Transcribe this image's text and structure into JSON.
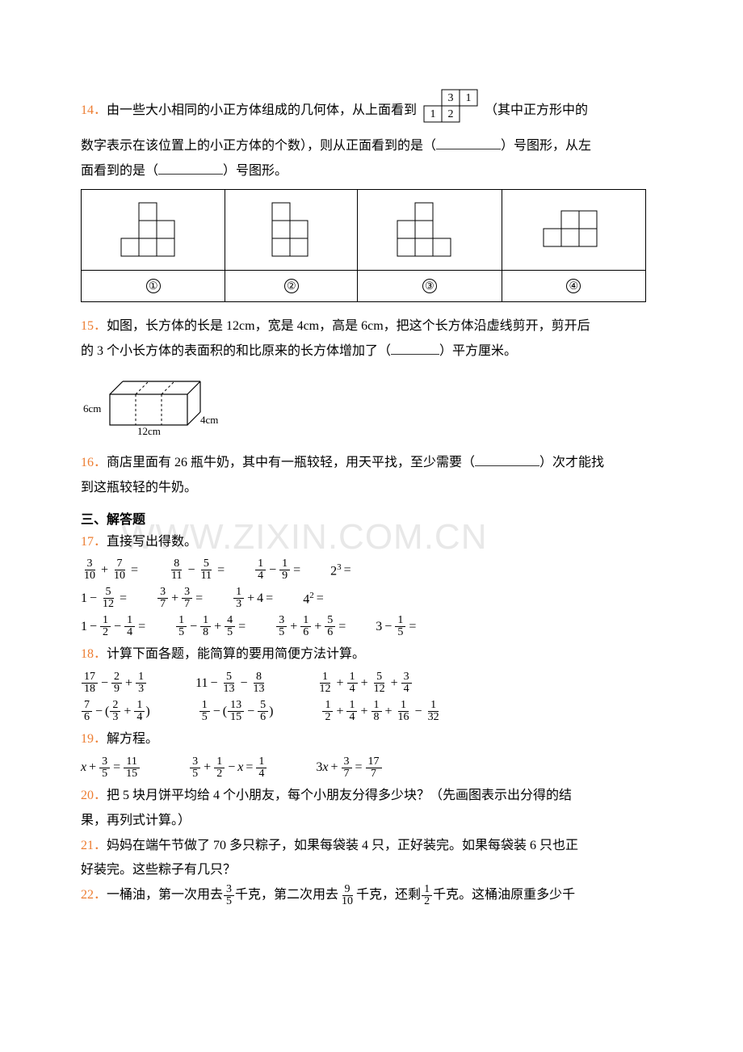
{
  "watermark_text": "WWW.ZIXIN.COM.CN",
  "q14": {
    "num": "14．",
    "t1": "由一些大小相同的小正方体组成的几何体，从上面看到",
    "topview": {
      "c31": "3",
      "c11": "1",
      "c10": "1",
      "c20": "2"
    },
    "t2": "（其中正方形中的",
    "t3": "数字表示在该位置上的小正方体的个数），则从正面看到的是（",
    "t4": "）号图形，从左",
    "t5": "面看到的是（",
    "t6": "）号图形。",
    "opts": [
      "①",
      "②",
      "③",
      "④"
    ]
  },
  "q15": {
    "num": "15．",
    "t1": "如图，长方体的长是 12cm，宽是 4cm，高是 6cm，把这个长方体沿虚线剪开，剪开后",
    "t2": "的 3 个小长方体的表面积的和比原来的长方体增加了（",
    "t3": "）平方厘米。",
    "h_label": "6cm",
    "w_label": "4cm",
    "l_label": "12cm"
  },
  "q16": {
    "num": "16．",
    "t1": "商店里面有 26 瓶牛奶，其中有一瓶较轻，用天平找，至少需要（",
    "t2": "）次才能找",
    "t3": "到这瓶较轻的牛奶。"
  },
  "section3": "三、解答题",
  "q17": {
    "num": "17．",
    "t": "直接写出得数。",
    "rows": [
      [
        {
          "parts": [
            "f:3/10",
            "+",
            "f:7/10",
            "="
          ]
        },
        {
          "parts": [
            "f:8/11",
            "−",
            "f:5/11",
            "="
          ]
        },
        {
          "parts": [
            "f:1/4",
            "−",
            "f:1/9",
            "="
          ]
        },
        {
          "parts": [
            "p:2^3",
            "="
          ]
        }
      ],
      [
        {
          "parts": [
            "n:1",
            "−",
            "f:5/12",
            "="
          ]
        },
        {
          "parts": [
            "f:3/7",
            "+",
            "f:3/7",
            "="
          ]
        },
        {
          "parts": [
            "f:1/3",
            "+",
            "n:4",
            "="
          ]
        },
        {
          "parts": [
            "p:4^2",
            "="
          ]
        }
      ],
      [
        {
          "parts": [
            "n:1",
            "−",
            "f:1/2",
            "−",
            "f:1/4",
            "="
          ]
        },
        {
          "parts": [
            "f:1/5",
            "−",
            "f:1/8",
            "+",
            "f:4/5",
            "="
          ]
        },
        {
          "parts": [
            "f:3/5",
            "+",
            "f:1/6",
            "+",
            "f:5/6",
            "="
          ]
        },
        {
          "parts": [
            "n:3",
            "−",
            "f:1/5",
            "="
          ]
        }
      ]
    ]
  },
  "q18": {
    "num": "18．",
    "t": "计算下面各题，能简算的要用简便方法计算。",
    "rows": [
      [
        {
          "parts": [
            "f:17/18",
            "−",
            "f:2/9",
            "+",
            "f:1/3"
          ]
        },
        {
          "parts": [
            "n:11",
            "−",
            "f:5/13",
            "−",
            "f:8/13"
          ]
        },
        {
          "parts": [
            "f:1/12",
            "+",
            "f:1/4",
            "+",
            "f:5/12",
            "+",
            "f:3/4"
          ]
        }
      ],
      [
        {
          "parts": [
            "f:7/6",
            "−",
            "n:(",
            "f:2/3",
            "+",
            "f:1/4",
            "n:)"
          ]
        },
        {
          "parts": [
            "f:1/5",
            "−",
            "n:(",
            "f:13/15",
            "−",
            "f:5/6",
            "n:)"
          ]
        },
        {
          "parts": [
            "f:1/2",
            "+",
            "f:1/4",
            "+",
            "f:1/8",
            "+",
            "f:1/16",
            "−",
            "f:1/32"
          ]
        }
      ]
    ]
  },
  "q19": {
    "num": "19．",
    "t": "解方程。",
    "rows": [
      [
        {
          "parts": [
            "v:x",
            "+",
            "f:3/5",
            "=",
            "f:11/15"
          ]
        },
        {
          "parts": [
            "f:3/5",
            "+",
            "f:1/2",
            "−",
            "v:x",
            "=",
            "f:1/4"
          ]
        },
        {
          "parts": [
            "n:3",
            "v:x",
            "+",
            "f:3/7",
            "=",
            "f:17/7"
          ]
        }
      ]
    ]
  },
  "q20": {
    "num": "20．",
    "t1": "把 5 块月饼平均给 4 个小朋友，每个小朋友分得多少块？（先画图表示出分得的结",
    "t2": "果，再列式计算。）"
  },
  "q21": {
    "num": "21．",
    "t1": "妈妈在端午节做了 70 多只粽子，如果每袋装 4 只，正好装完。如果每袋装 6 只也正",
    "t2": "好装完。这些粽子有几只？"
  },
  "q22": {
    "num": "22．",
    "t1": "一桶油，第一次用去",
    "t2": "千克，第二次用去",
    "t3": "千克，还剩",
    "t4": "千克。这桶油原重多少千",
    "f1": "3/5",
    "f2": "9/10",
    "f3": "1/2"
  }
}
